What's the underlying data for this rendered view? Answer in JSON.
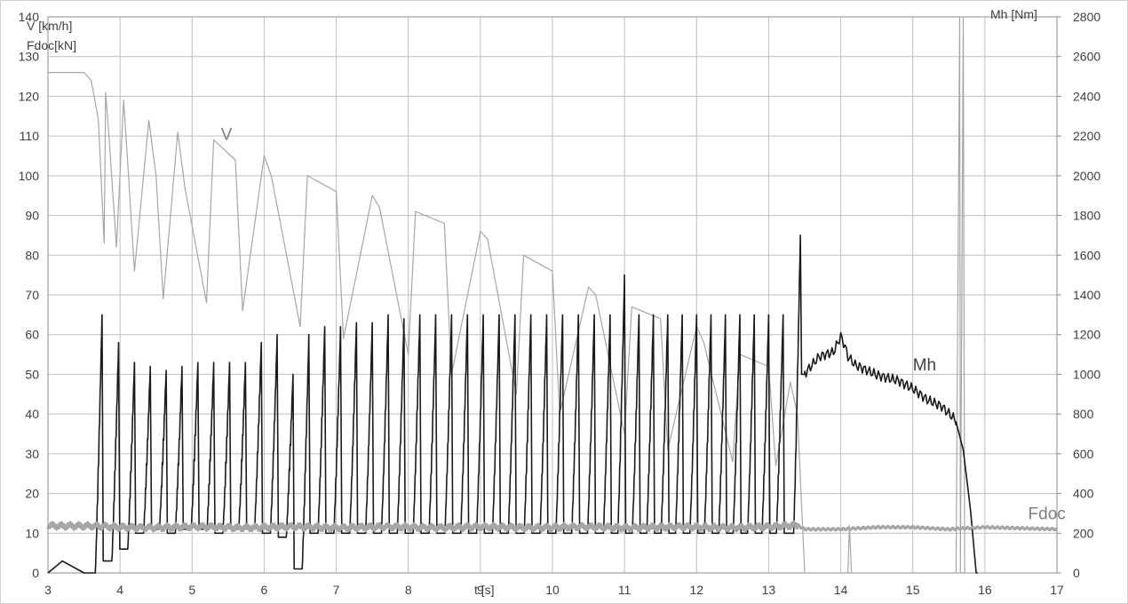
{
  "chart_data": {
    "type": "line",
    "title": "",
    "xlabel": "t [s]",
    "ylabel_left": "V [km/h]",
    "ylabel_left_2": "Fdoc[kN]",
    "ylabel_right": "Mh [Nm]",
    "xlim": [
      3,
      17
    ],
    "ylim_left": [
      0,
      140
    ],
    "ylim_right": [
      0,
      2800
    ],
    "x_ticks": [
      "3",
      "4",
      "5",
      "6",
      "7",
      "8",
      "9",
      "10",
      "11",
      "12",
      "13",
      "14",
      "15",
      "16",
      "17"
    ],
    "y_left_ticks": [
      "0",
      "10",
      "20",
      "30",
      "40",
      "50",
      "60",
      "70",
      "80",
      "90",
      "100",
      "110",
      "120",
      "130",
      "140"
    ],
    "y_right_ticks": [
      "0",
      "200",
      "400",
      "600",
      "800",
      "1000",
      "1200",
      "1400",
      "1600",
      "1800",
      "2000",
      "2200",
      "2400",
      "2600",
      "2800"
    ],
    "grid": true,
    "series": [
      {
        "name": "V",
        "axis": "left",
        "color": "#a6a6a6",
        "label_at": [
          5.4,
          109
        ],
        "x": [
          3.0,
          3.5,
          3.6,
          3.7,
          3.78,
          3.8,
          3.85,
          3.95,
          4.05,
          4.1,
          4.2,
          4.4,
          4.5,
          4.6,
          4.8,
          4.9,
          5.2,
          5.3,
          5.6,
          5.7,
          6.0,
          6.1,
          6.5,
          6.6,
          7.0,
          7.1,
          7.5,
          7.6,
          8.0,
          8.1,
          8.5,
          8.6,
          9.0,
          9.1,
          9.5,
          9.6,
          10.0,
          10.1,
          10.5,
          10.6,
          11.0,
          11.1,
          11.5,
          11.6,
          12.0,
          12.1,
          12.5,
          12.6,
          13.0,
          13.1,
          13.3,
          13.4,
          13.45,
          13.5,
          14.0,
          14.1,
          14.12,
          14.15,
          14.5,
          15.0,
          15.6,
          15.65,
          15.66,
          15.7,
          15.72,
          15.75,
          16.0,
          17.0
        ],
        "values": [
          126,
          126,
          124,
          114,
          83,
          121,
          109,
          82,
          119,
          105,
          76,
          114,
          100,
          69,
          111,
          97,
          68,
          109,
          104,
          66,
          105,
          100,
          62,
          100,
          96,
          59,
          95,
          92,
          55,
          91,
          88,
          50,
          86,
          84,
          45,
          80,
          76,
          40,
          72,
          70,
          35,
          67,
          64,
          31,
          62,
          58,
          28,
          55,
          52,
          27,
          48,
          40,
          20,
          0,
          0,
          0,
          12,
          0,
          0,
          0,
          0,
          140,
          0,
          140,
          0,
          0,
          0,
          0
        ]
      },
      {
        "name": "Mh",
        "axis": "right",
        "color": "#1a1a1a",
        "label_at": [
          15.0,
          51
        ],
        "cycles": {
          "peaks_x": [
            3.75,
            3.98,
            4.2,
            4.42,
            4.64,
            4.86,
            5.08,
            5.3,
            5.52,
            5.74,
            5.96,
            6.18,
            6.4,
            6.62,
            6.84,
            7.06,
            7.28,
            7.5,
            7.72,
            7.94,
            8.16,
            8.38,
            8.6,
            8.82,
            9.04,
            9.26,
            9.48,
            9.7,
            9.92,
            10.14,
            10.36,
            10.58,
            10.8,
            11.0,
            11.2,
            11.4,
            11.6,
            11.8,
            12.0,
            12.2,
            12.4,
            12.6,
            12.8,
            13.0,
            13.2,
            13.44
          ],
          "peaks": [
            1300,
            1160,
            1060,
            1040,
            1020,
            1040,
            1060,
            1060,
            1060,
            1060,
            1160,
            1200,
            1000,
            1200,
            1240,
            1240,
            1260,
            1260,
            1300,
            1280,
            1300,
            1300,
            1300,
            1300,
            1300,
            1300,
            1300,
            1300,
            1300,
            1300,
            1300,
            1300,
            1300,
            1500,
            1300,
            1300,
            1300,
            1300,
            1300,
            1300,
            1300,
            1300,
            1300,
            1300,
            1300,
            1700
          ],
          "troughs": [
            60,
            120,
            200,
            220,
            200,
            220,
            220,
            200,
            220,
            220,
            200,
            180,
            20,
            200,
            200,
            200,
            200,
            200,
            200,
            200,
            200,
            200,
            200,
            200,
            200,
            200,
            200,
            200,
            200,
            200,
            200,
            200,
            200,
            200,
            200,
            200,
            200,
            200,
            200,
            200,
            200,
            200,
            200,
            200,
            200,
            1000
          ]
        },
        "x": [
          3.0,
          3.2,
          3.5,
          3.62,
          13.44,
          13.5,
          13.7,
          13.9,
          14.0,
          14.05,
          14.1,
          14.2,
          14.5,
          14.8,
          15.0,
          15.2,
          15.4,
          15.6,
          15.7,
          15.8,
          15.88,
          15.9
        ],
        "values": [
          0,
          60,
          0,
          0,
          1700,
          1000,
          1080,
          1100,
          1180,
          1140,
          1080,
          1040,
          1000,
          980,
          940,
          880,
          840,
          760,
          620,
          320,
          0,
          0
        ]
      },
      {
        "name": "Fdoc",
        "axis": "left",
        "color": "#a6a6a6",
        "label_at": [
          16.6,
          13.5
        ],
        "x": [
          3.0,
          4.0,
          5.0,
          6.0,
          7.0,
          8.0,
          9.0,
          10.0,
          11.0,
          12.0,
          13.0,
          13.4,
          13.5,
          14.0,
          14.5,
          15.0,
          15.5,
          16.0,
          17.0
        ],
        "values": [
          12,
          11.5,
          11.5,
          11.5,
          11.5,
          11.5,
          11.5,
          11.5,
          11.5,
          11.5,
          11.5,
          12,
          11,
          11,
          11.5,
          11.5,
          11,
          11.5,
          11
        ]
      }
    ]
  }
}
